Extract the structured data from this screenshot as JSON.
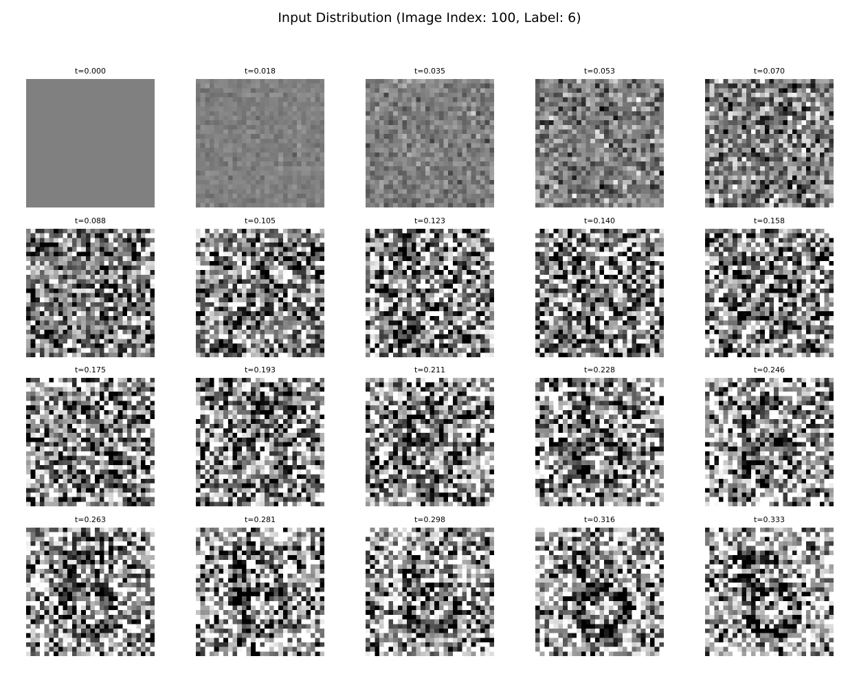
{
  "chart_data": {
    "type": "heatmap",
    "title": "Input Distribution (Image Index: 100, Label: 6)",
    "colormap": "gray",
    "grid": false,
    "image_size": [
      28,
      28
    ],
    "panels": [
      {
        "title": "t=0.000",
        "t": 0.0
      },
      {
        "title": "t=0.018",
        "t": 0.018
      },
      {
        "title": "t=0.035",
        "t": 0.035
      },
      {
        "title": "t=0.053",
        "t": 0.053
      },
      {
        "title": "t=0.070",
        "t": 0.07
      },
      {
        "title": "t=0.088",
        "t": 0.088
      },
      {
        "title": "t=0.105",
        "t": 0.105
      },
      {
        "title": "t=0.123",
        "t": 0.123
      },
      {
        "title": "t=0.140",
        "t": 0.14
      },
      {
        "title": "t=0.158",
        "t": 0.158
      },
      {
        "title": "t=0.175",
        "t": 0.175
      },
      {
        "title": "t=0.193",
        "t": 0.193
      },
      {
        "title": "t=0.211",
        "t": 0.211
      },
      {
        "title": "t=0.228",
        "t": 0.228
      },
      {
        "title": "t=0.246",
        "t": 0.246
      },
      {
        "title": "t=0.263",
        "t": 0.263
      },
      {
        "title": "t=0.281",
        "t": 0.281
      },
      {
        "title": "t=0.298",
        "t": 0.298
      },
      {
        "title": "t=0.316",
        "t": 0.316
      },
      {
        "title": "t=0.333",
        "t": 0.333
      }
    ]
  }
}
